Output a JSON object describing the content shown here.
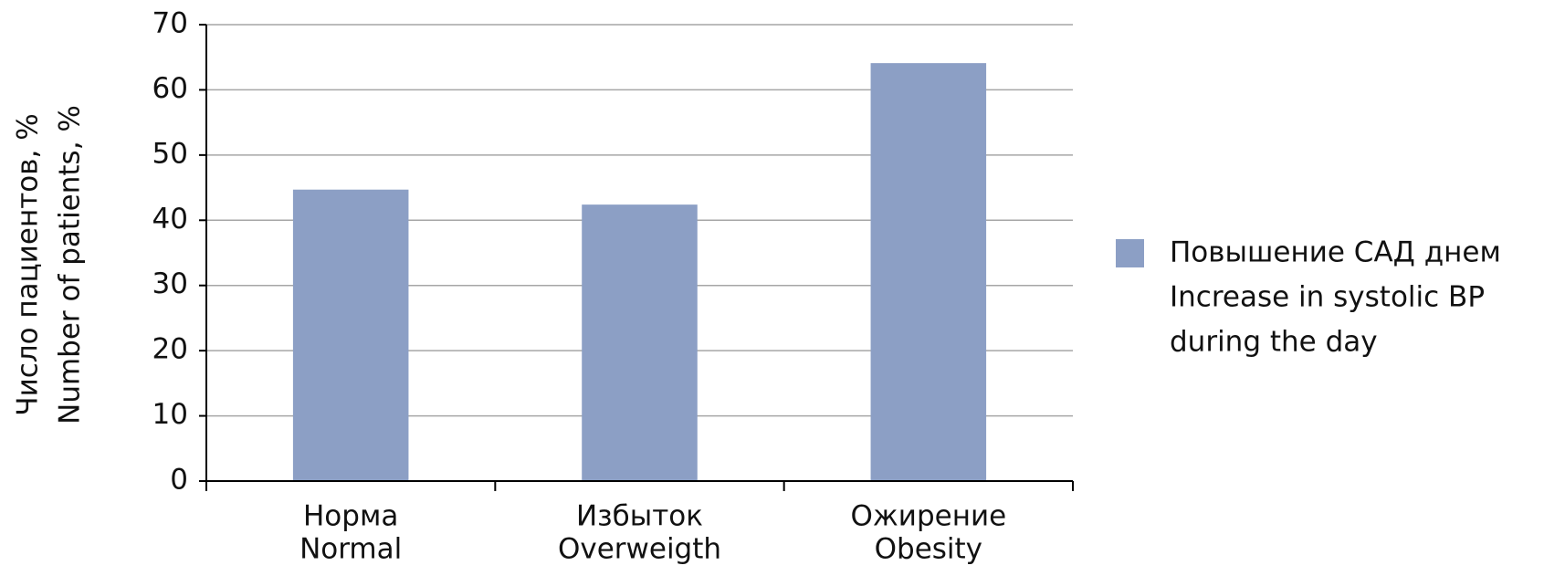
{
  "chart_data": {
    "type": "bar",
    "ylabel": [
      "Число пациентов, %",
      "Number of patients, %"
    ],
    "categories": [
      [
        "Норма",
        "Normal"
      ],
      [
        "Избыток",
        "Overweigth"
      ],
      [
        "Ожирение",
        "Obesity"
      ]
    ],
    "series": [
      {
        "name": [
          "Повышение САД днем",
          "Increase in systolic BP",
          "during the day"
        ],
        "color": "#8c9fc5",
        "values": [
          44.7,
          42.4,
          64.1
        ]
      }
    ],
    "ylim": [
      0,
      70
    ],
    "yticks": [
      0,
      10,
      20,
      30,
      40,
      50,
      60,
      70
    ],
    "grid": true,
    "legend": "right"
  }
}
